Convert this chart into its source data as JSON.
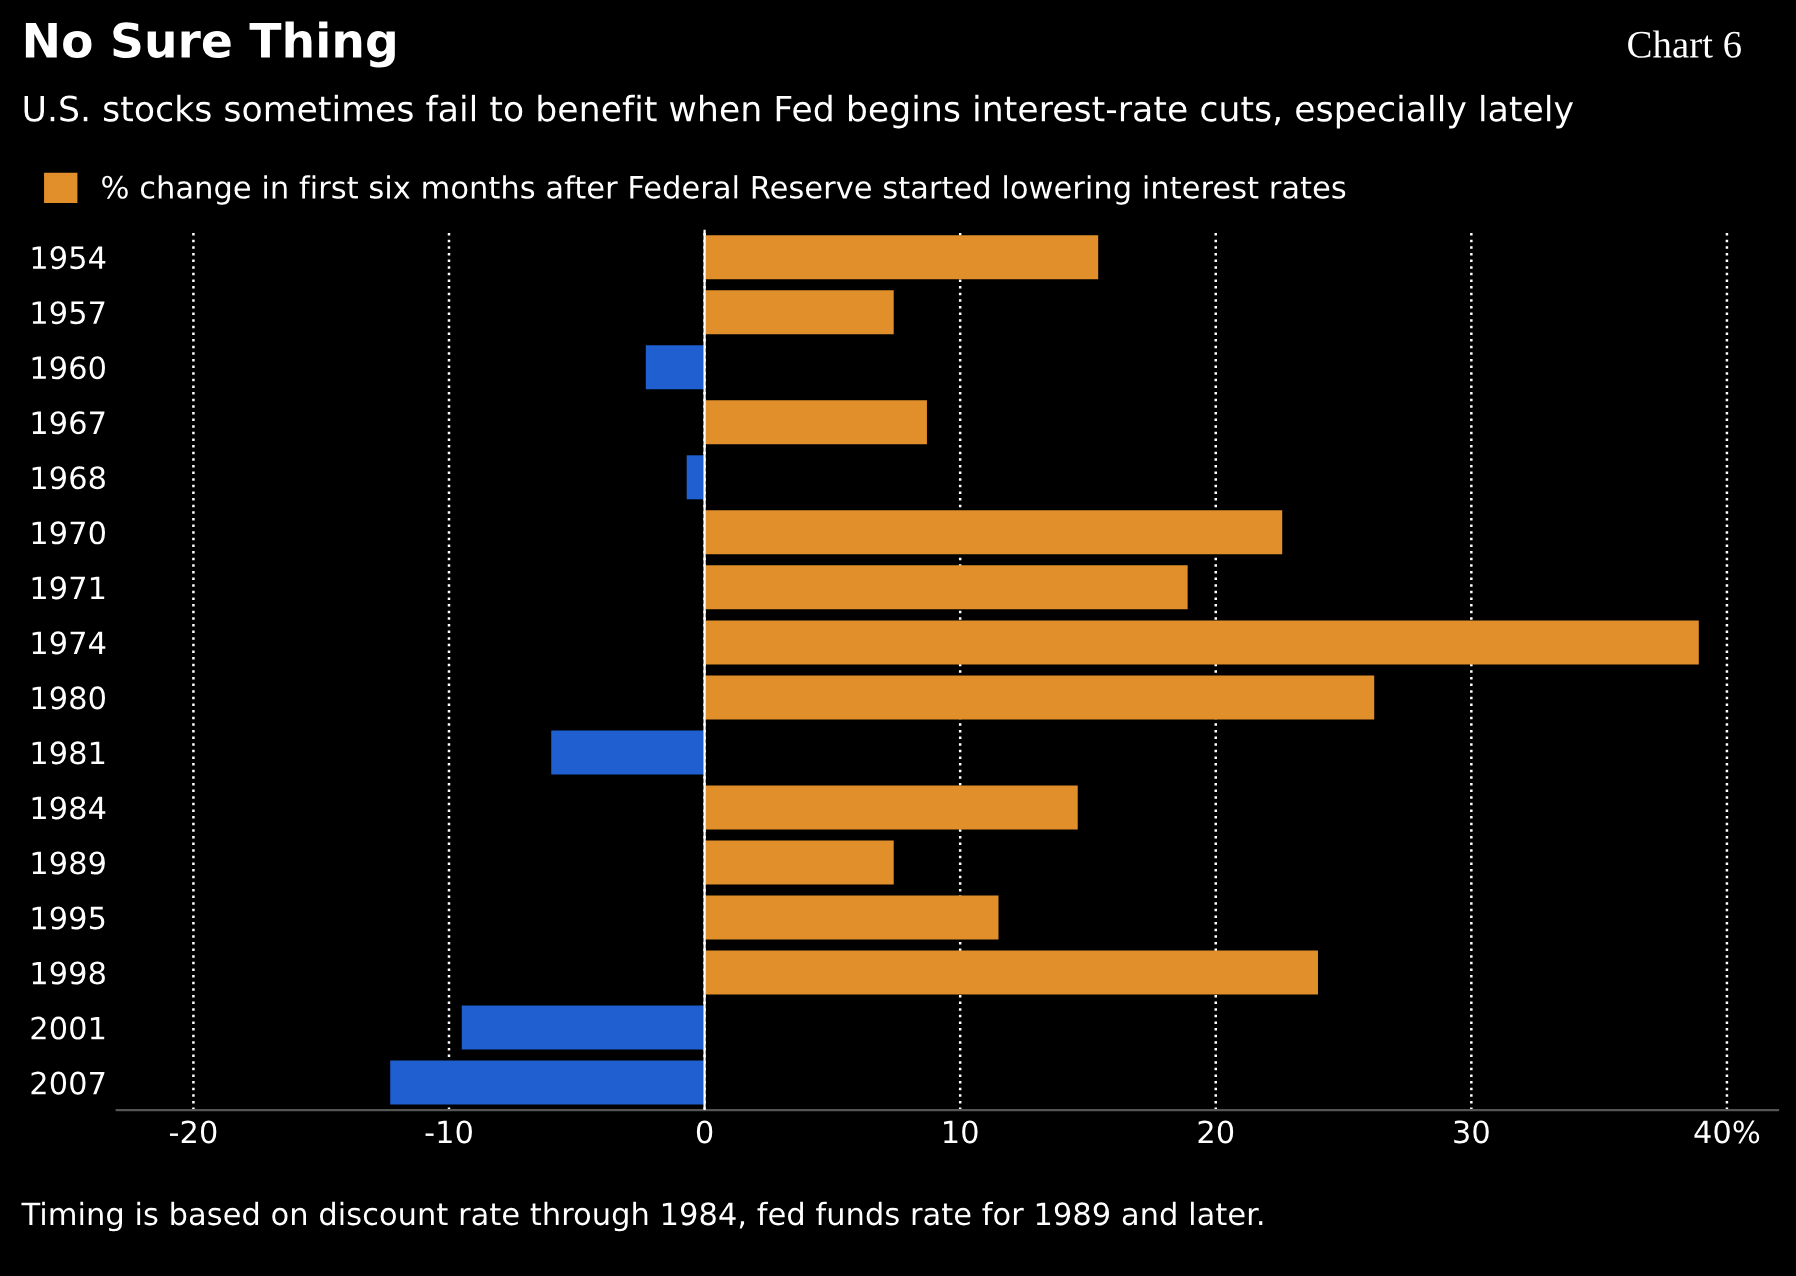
{
  "chart_data": {
    "type": "bar",
    "orientation": "horizontal",
    "title": "No Sure Thing",
    "subtitle": "U.S. stocks sometimes fail to benefit when Fed begins interest-rate cuts, especially lately",
    "categories": [
      "1954",
      "1957",
      "1960",
      "1967",
      "1968",
      "1970",
      "1971",
      "1974",
      "1980",
      "1981",
      "1984",
      "1989",
      "1995",
      "1998",
      "2001",
      "2007"
    ],
    "series": [
      {
        "name": "% change in first six months after Federal Reserve started lowering interest rates",
        "color": "#e08f2a",
        "values": [
          15.4,
          7.4,
          -2.3,
          8.7,
          -0.7,
          22.6,
          18.9,
          38.9,
          26.2,
          -6.0,
          14.6,
          7.4,
          11.5,
          24.0,
          -9.5,
          -12.3
        ],
        "colors": [
          "#e08f2a",
          "#e08f2a",
          "#1f5fd0",
          "#e08f2a",
          "#1f5fd0",
          "#e08f2a",
          "#e08f2a",
          "#e08f2a",
          "#e08f2a",
          "#1f5fd0",
          "#e08f2a",
          "#e08f2a",
          "#e08f2a",
          "#e08f2a",
          "#1f5fd0",
          "#1f5fd0"
        ]
      }
    ],
    "xlim": [
      -23,
      42
    ],
    "xticks": [
      -20,
      -10,
      0,
      10,
      20,
      30,
      {
        "value": 40,
        "label": "40%"
      }
    ],
    "grid": "x",
    "legend": "top left",
    "annotations": [
      "Chart 6",
      "Timing is based on discount rate through 1984, fed funds rate for 1989 and later."
    ]
  }
}
